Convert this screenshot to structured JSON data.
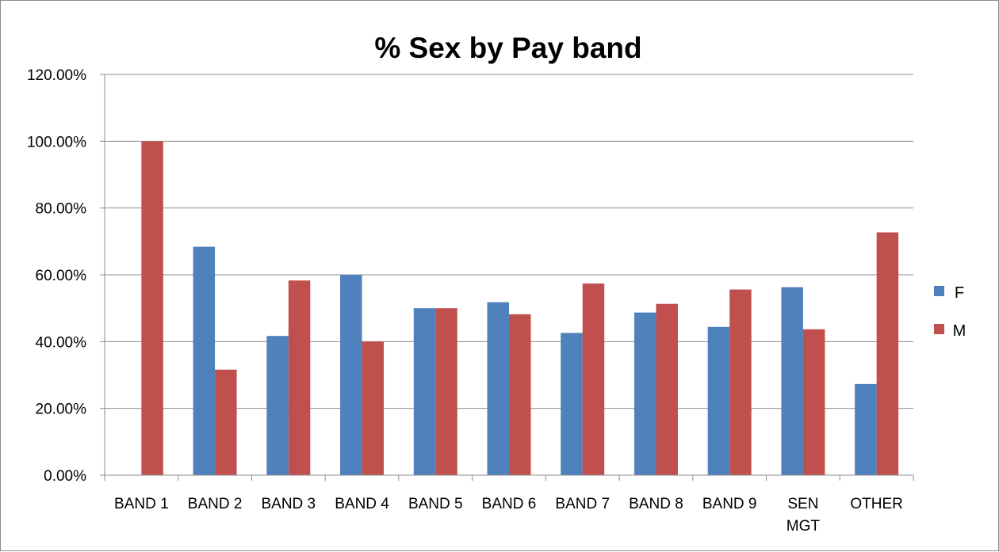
{
  "chart_data": {
    "type": "bar",
    "title": "% Sex by Pay band",
    "xlabel": "",
    "ylabel": "",
    "categories": [
      [
        "BAND 1"
      ],
      [
        "BAND 2"
      ],
      [
        "BAND 3"
      ],
      [
        "BAND 4"
      ],
      [
        "BAND 5"
      ],
      [
        "BAND 6"
      ],
      [
        "BAND 7"
      ],
      [
        "BAND 8"
      ],
      [
        "BAND 9"
      ],
      [
        "SEN",
        "MGT"
      ],
      [
        "OTHER"
      ]
    ],
    "series": [
      {
        "name": "F",
        "color": "#4F81BD",
        "values": [
          0,
          68.4,
          41.7,
          60.0,
          50.0,
          51.8,
          42.6,
          48.7,
          44.4,
          56.3,
          27.3
        ]
      },
      {
        "name": "M",
        "color": "#C0504D",
        "values": [
          100.0,
          31.6,
          58.3,
          40.0,
          50.0,
          48.2,
          57.4,
          51.3,
          55.6,
          43.7,
          72.7
        ]
      }
    ],
    "ylim": [
      0,
      120
    ],
    "yticks": [
      0,
      20,
      40,
      60,
      80,
      100,
      120
    ],
    "ytick_labels": [
      "0.00%",
      "20.00%",
      "40.00%",
      "60.00%",
      "80.00%",
      "100.00%",
      "120.00%"
    ],
    "grid": "horizontal",
    "legend_position": "right"
  }
}
